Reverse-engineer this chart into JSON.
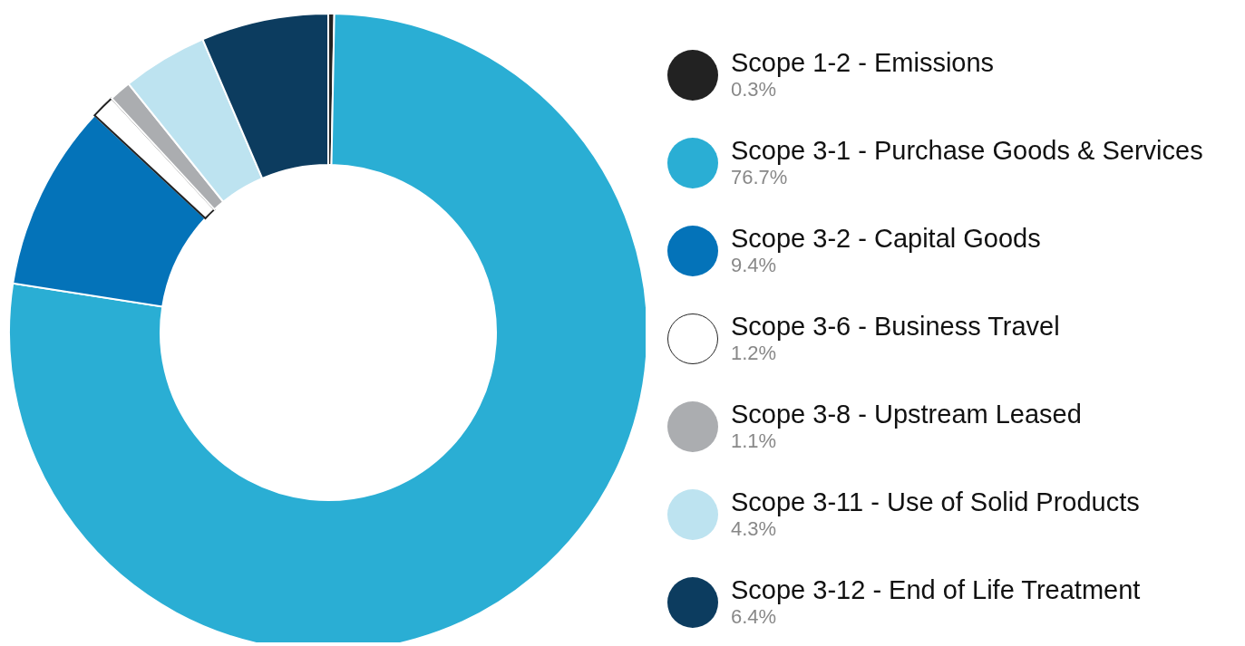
{
  "chart_data": {
    "type": "donut",
    "categories": [
      "Scope 1-2 - Emissions",
      "Scope 3-1 - Purchase Goods & Services",
      "Scope 3-2 - Capital Goods",
      "Scope 3-6 - Business Travel",
      "Scope 3-8 - Upstream Leased",
      "Scope 3-11 - Use of Solid Products",
      "Scope 3-12 - End of Life Treatment"
    ],
    "values": [
      0.3,
      76.7,
      9.4,
      1.2,
      1.1,
      4.3,
      6.4
    ],
    "value_labels": [
      "0.3%",
      "76.7%",
      "9.4%",
      "1.2%",
      "1.1%",
      "4.3%",
      "6.4%"
    ],
    "colors": [
      "#222222",
      "#2aaed4",
      "#0473b9",
      "#ffffff",
      "#abadb0",
      "#bde3f0",
      "#0c3c5f"
    ],
    "legend": "right"
  }
}
